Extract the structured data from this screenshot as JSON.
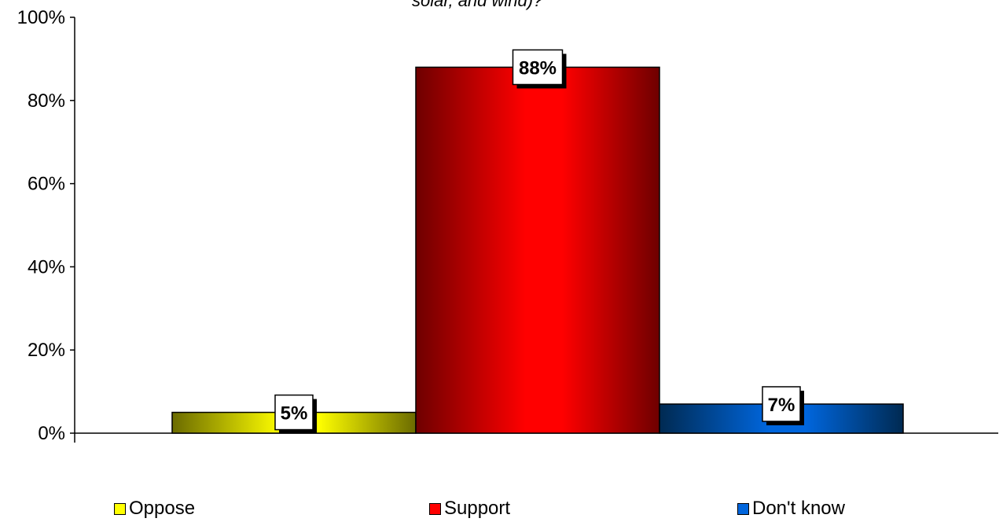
{
  "chart_data": {
    "type": "bar",
    "title": "solar, and wind)?",
    "categories": [
      "Oppose",
      "Support",
      "Don't know"
    ],
    "values": [
      5,
      88,
      7
    ],
    "data_labels": [
      "5%",
      "88%",
      "7%"
    ],
    "ylim": [
      0,
      100
    ],
    "yticks": [
      "0%",
      "20%",
      "40%",
      "60%",
      "80%",
      "100%"
    ],
    "ytick_values": [
      0,
      20,
      40,
      60,
      80,
      100
    ],
    "grid": false,
    "legend_position": "bottom",
    "colors": {
      "Oppose": {
        "dark": "#6b6b00",
        "light": "#ffff00"
      },
      "Support": {
        "dark": "#6e0000",
        "light": "#ff0000"
      },
      "Don't know": {
        "dark": "#002a52",
        "light": "#0066dd"
      }
    }
  }
}
